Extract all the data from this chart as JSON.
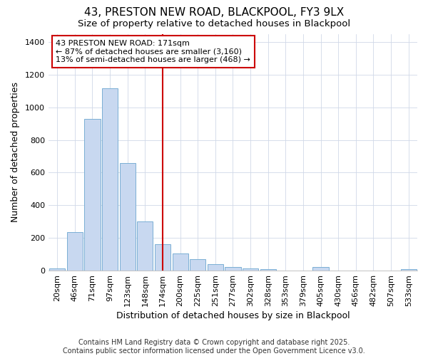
{
  "title": "43, PRESTON NEW ROAD, BLACKPOOL, FY3 9LX",
  "subtitle": "Size of property relative to detached houses in Blackpool",
  "xlabel": "Distribution of detached houses by size in Blackpool",
  "ylabel": "Number of detached properties",
  "categories": [
    "20sqm",
    "46sqm",
    "71sqm",
    "97sqm",
    "123sqm",
    "148sqm",
    "174sqm",
    "200sqm",
    "225sqm",
    "251sqm",
    "277sqm",
    "302sqm",
    "328sqm",
    "353sqm",
    "379sqm",
    "405sqm",
    "430sqm",
    "456sqm",
    "482sqm",
    "507sqm",
    "533sqm"
  ],
  "values": [
    15,
    235,
    930,
    1115,
    660,
    300,
    160,
    105,
    70,
    40,
    20,
    15,
    10,
    0,
    0,
    20,
    0,
    0,
    0,
    0,
    10
  ],
  "bar_color": "#c8d8f0",
  "bar_edge_color": "#7aafd4",
  "vline_x_index": 6,
  "vline_color": "#cc0000",
  "annotation_text": "43 PRESTON NEW ROAD: 171sqm\n← 87% of detached houses are smaller (3,160)\n13% of semi-detached houses are larger (468) →",
  "annotation_box_color": "#ffffff",
  "annotation_box_edge_color": "#cc0000",
  "ylim": [
    0,
    1450
  ],
  "yticks": [
    0,
    200,
    400,
    600,
    800,
    1000,
    1200,
    1400
  ],
  "footer": "Contains HM Land Registry data © Crown copyright and database right 2025.\nContains public sector information licensed under the Open Government Licence v3.0.",
  "bg_color": "#ffffff",
  "plot_bg_color": "#ffffff",
  "title_fontsize": 11,
  "subtitle_fontsize": 9.5,
  "axis_label_fontsize": 9,
  "tick_fontsize": 8,
  "footer_fontsize": 7
}
